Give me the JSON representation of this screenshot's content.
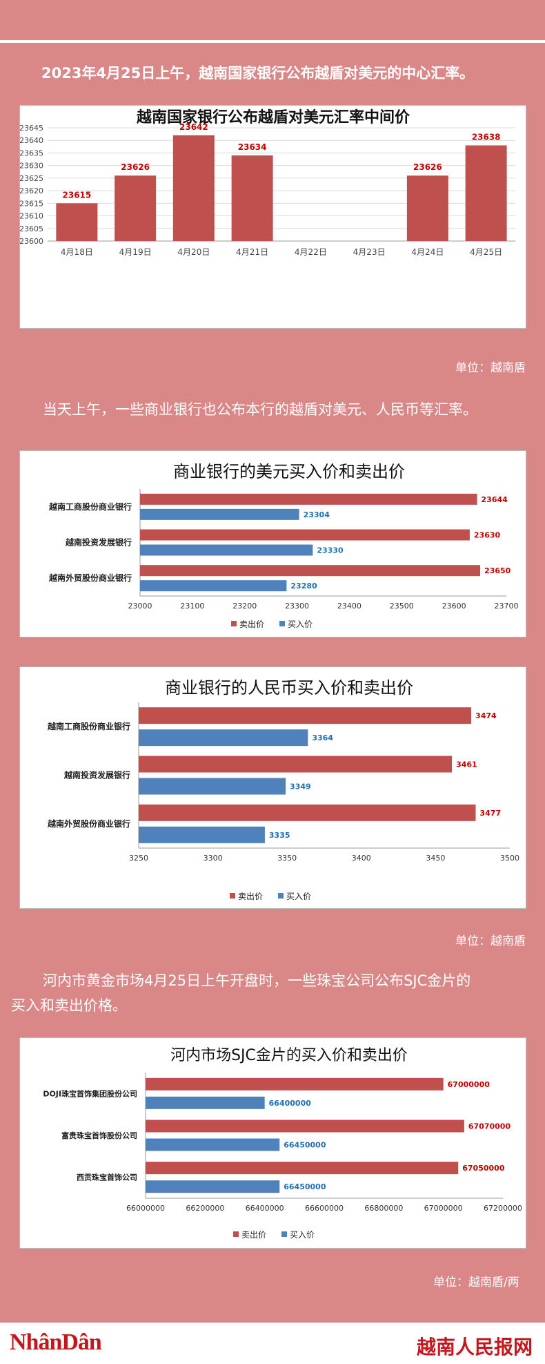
{
  "intro": "2023年4月25日上午，越南国家银行公布越盾对美元的中心汇率。",
  "para2": "当天上午，一些商业银行也公布本行的越盾对美元、人民币等汇率。",
  "para3_line1": "河内市黄金市场4月25日上午开盘时，一些珠宝公司公布SJC金片的",
  "para3_line2": "买入和卖出价格。",
  "unit1": "单位：越南盾",
  "unit2": "单位：越南盾",
  "unit3": "单位：越南盾/两",
  "footer": {
    "left_logo": "NhânDân",
    "right_logo": "越南人民报网"
  },
  "colors": {
    "red": "#c0504d",
    "blue": "#4f81bd",
    "bg": "#d98787",
    "label_red": "#c00000",
    "label_blue": "#1f6fb5"
  },
  "chart_data": [
    {
      "type": "bar",
      "title": "越南国家银行公布越盾对美元汇率中间价",
      "categories": [
        "4月18日",
        "4月19日",
        "4月20日",
        "4月21日",
        "4月22日",
        "4月23日",
        "4月24日",
        "4月25日"
      ],
      "values": [
        23615,
        23626,
        23642,
        23634,
        null,
        null,
        23626,
        23638
      ],
      "ylim": [
        23600,
        23645
      ],
      "yticks": [
        23600,
        23605,
        23610,
        23615,
        23620,
        23625,
        23630,
        23635,
        23640,
        23645
      ],
      "grid": true
    },
    {
      "type": "bar",
      "orientation": "horizontal",
      "title": "商业银行的美元买入价和卖出价",
      "categories": [
        "越南工商股份商业银行",
        "越南投资发展银行",
        "越南外贸股份商业银行"
      ],
      "series": [
        {
          "name": "卖出价",
          "values": [
            23644,
            23630,
            23650
          ]
        },
        {
          "name": "买入价",
          "values": [
            23304,
            23330,
            23280
          ]
        }
      ],
      "xlim": [
        23000,
        23700
      ],
      "xticks": [
        23000,
        23100,
        23200,
        23300,
        23400,
        23500,
        23600,
        23700
      ],
      "legend": "bottom"
    },
    {
      "type": "bar",
      "orientation": "horizontal",
      "title": "商业银行的人民币买入价和卖出价",
      "categories": [
        "越南工商股份商业银行",
        "越南投资发展银行",
        "越南外贸股份商业银行"
      ],
      "series": [
        {
          "name": "卖出价",
          "values": [
            3474,
            3461,
            3477
          ]
        },
        {
          "name": "买入价",
          "values": [
            3364,
            3349,
            3335
          ]
        }
      ],
      "xlim": [
        3250,
        3500
      ],
      "xticks": [
        3250,
        3300,
        3350,
        3400,
        3450,
        3500
      ],
      "legend": "bottom"
    },
    {
      "type": "bar",
      "orientation": "horizontal",
      "title": "河内市场SJC金片的买入价和卖出价",
      "categories": [
        "DOJI珠宝首饰集团股份公司",
        "富贵珠宝首饰股份公司",
        "西贡珠宝首饰公司"
      ],
      "series": [
        {
          "name": "卖出价",
          "values": [
            67000000,
            67070000,
            67050000
          ]
        },
        {
          "name": "买入价",
          "values": [
            66400000,
            66450000,
            66450000
          ]
        }
      ],
      "xlim": [
        66000000,
        67200000
      ],
      "xticks": [
        66000000,
        66200000,
        66400000,
        66600000,
        66800000,
        67000000,
        67200000
      ],
      "legend": "bottom"
    }
  ]
}
